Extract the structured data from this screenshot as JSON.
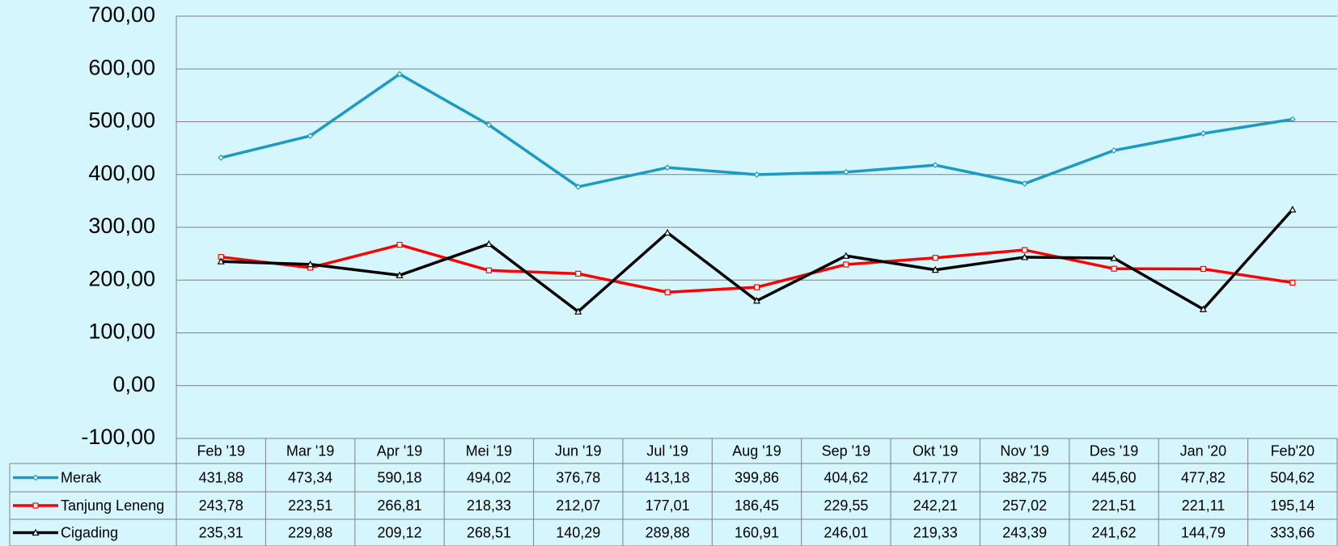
{
  "chart_data": {
    "type": "line",
    "categories": [
      "Feb '19",
      "Mar '19",
      "Apr '19",
      "Mei '19",
      "Jun '19",
      "Jul '19",
      "Aug '19",
      "Sep '19",
      "Okt '19",
      "Nov '19",
      "Des '19",
      "Jan '20",
      "Feb'20"
    ],
    "ylim": [
      -100,
      700
    ],
    "yticks": [
      {
        "value": -100,
        "label": "-100,00"
      },
      {
        "value": 0,
        "label": "0,00"
      },
      {
        "value": 100,
        "label": "100,00"
      },
      {
        "value": 200,
        "label": "200,00"
      },
      {
        "value": 300,
        "label": "300,00"
      },
      {
        "value": 400,
        "label": "400,00"
      },
      {
        "value": 500,
        "label": "500,00"
      },
      {
        "value": 600,
        "label": "600,00"
      },
      {
        "value": 700,
        "label": "700,00"
      }
    ],
    "grid": true,
    "series": [
      {
        "name": "Merak",
        "color": "#1b9ac4",
        "marker": "diamond",
        "values": [
          431.88,
          473.34,
          590.18,
          494.02,
          376.78,
          413.18,
          399.86,
          404.62,
          417.77,
          382.75,
          445.6,
          477.82,
          504.62
        ],
        "value_labels": [
          "431,88",
          "473,34",
          "590,18",
          "494,02",
          "376,78",
          "413,18",
          "399,86",
          "404,62",
          "417,77",
          "382,75",
          "445,60",
          "477,82",
          "504,62"
        ]
      },
      {
        "name": "Tanjung Leneng",
        "color": "#ff0000",
        "marker": "square",
        "values": [
          243.78,
          223.51,
          266.81,
          218.33,
          212.07,
          177.01,
          186.45,
          229.55,
          242.21,
          257.02,
          221.51,
          221.11,
          195.14
        ],
        "value_labels": [
          "243,78",
          "223,51",
          "266,81",
          "218,33",
          "212,07",
          "177,01",
          "186,45",
          "229,55",
          "242,21",
          "257,02",
          "221,51",
          "221,11",
          "195,14"
        ]
      },
      {
        "name": "Cigading",
        "color": "#000000",
        "marker": "triangle",
        "values": [
          235.31,
          229.88,
          209.12,
          268.51,
          140.29,
          289.88,
          160.91,
          246.01,
          219.33,
          243.39,
          241.62,
          144.79,
          333.66
        ],
        "value_labels": [
          "235,31",
          "229,88",
          "209,12",
          "268,51",
          "140,29",
          "289,88",
          "160,91",
          "246,01",
          "219,33",
          "243,39",
          "241,62",
          "144,79",
          "333,66"
        ]
      }
    ]
  }
}
